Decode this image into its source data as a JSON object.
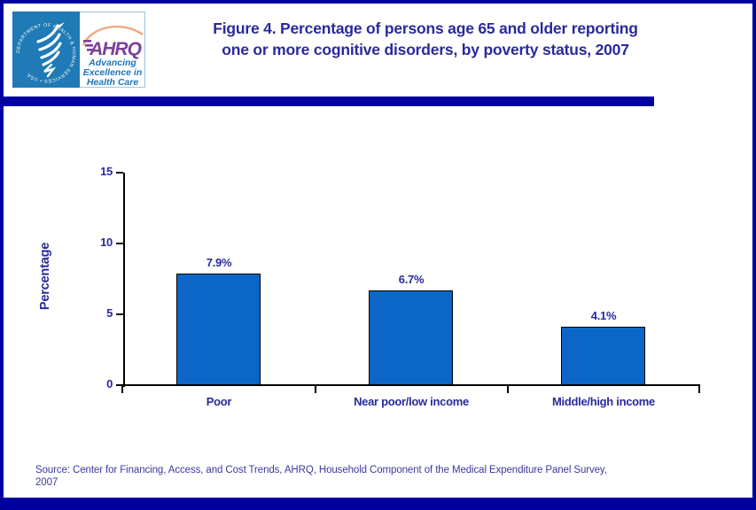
{
  "header": {
    "title_line1": "Figure 4. Percentage of persons age 65 and older reporting",
    "title_line2": "one or more cognitive disorders, by poverty status, 2007"
  },
  "logo": {
    "hhs_seal_text": "DEPARTMENT OF HEALTH & HUMAN SERVICES • USA",
    "ahrq_wordmark": "AHRQ",
    "tagline_line1": "Advancing",
    "tagline_line2": "Excellence in",
    "tagline_line3": "Health Care"
  },
  "chart_data": {
    "type": "bar",
    "title": "Percentage of persons age 65 and older reporting one or more cognitive disorders, by poverty status, 2007",
    "categories": [
      "Poor",
      "Near poor/low income",
      "Middle/high income"
    ],
    "values": [
      7.9,
      6.7,
      4.1
    ],
    "value_labels": [
      "7.9%",
      "6.7%",
      "4.1%"
    ],
    "xlabel": "",
    "ylabel": "Percentage",
    "ylim": [
      0,
      15
    ],
    "yticks": [
      0,
      5,
      10,
      15
    ],
    "grid": false,
    "legend": false,
    "bar_color": "#0B66C8"
  },
  "footer": {
    "source_line1": "Source: Center for Financing, Access, and Cost Trends, AHRQ, Household Component of the Medical Expenditure Panel Survey,",
    "source_line2": "2007"
  },
  "colors": {
    "navy": "#0000A0",
    "text_navy": "#2A2A9C",
    "bar_blue": "#0B66C8",
    "hhs_blue": "#1F7AB5",
    "ahrq_purple": "#7C4199",
    "tagline_blue": "#1C75BC",
    "arc_orange": "#EFA97E"
  }
}
